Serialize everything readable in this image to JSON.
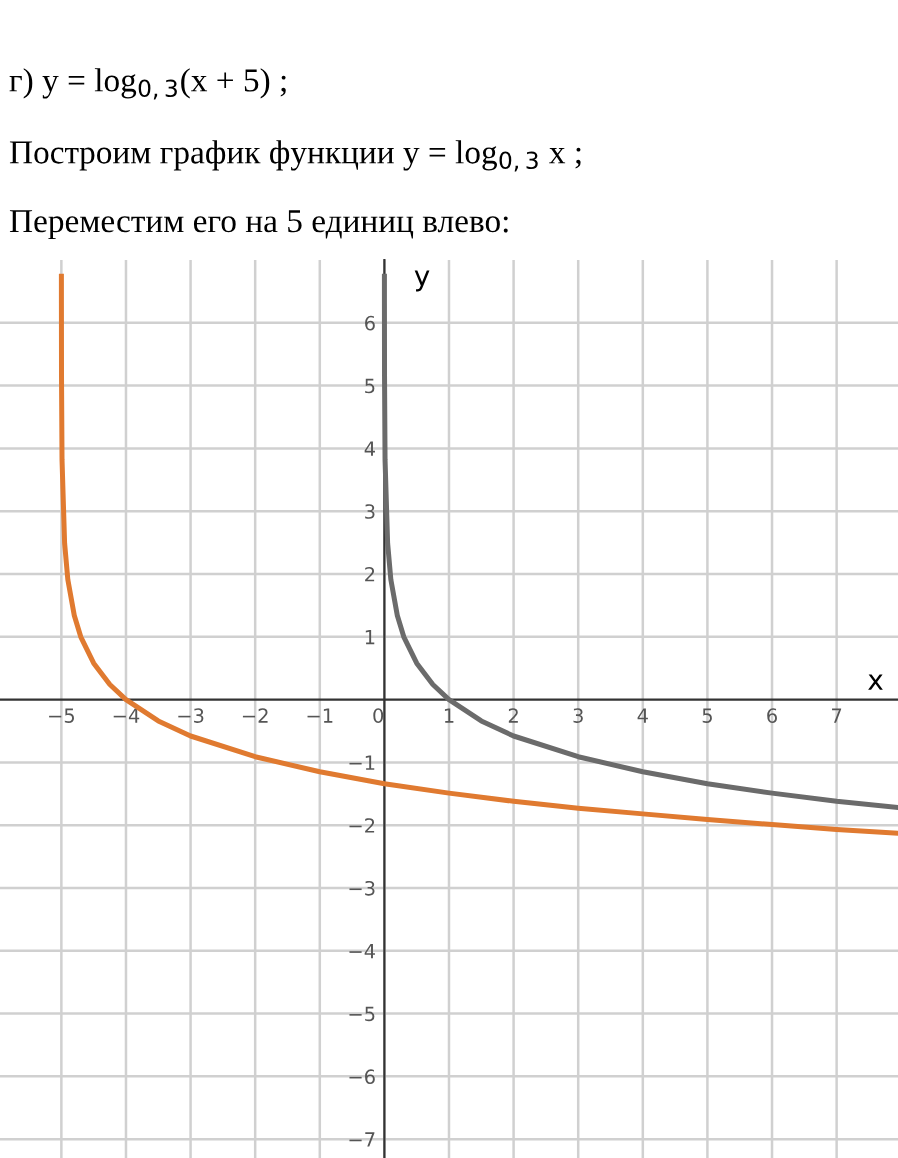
{
  "chart_data": {
    "type": "line",
    "title": "г) y = log$_{0,3}$(x + 5) ;",
    "subtitle": "Построим график функции y = log$_{0,3}$ x ;",
    "annotations": [
      "Переместим его на 5 единиц влево:"
    ],
    "xlabel": "x",
    "ylabel": "y",
    "series": [
      {
        "color": "#6b6b6b",
        "x": [
          0.0003,
          0.0005,
          0.002,
          0.01,
          0.05,
          0.1,
          0.2,
          0.3,
          0.5,
          0.75,
          1,
          1.5,
          2,
          3,
          4,
          5,
          6,
          7,
          7.95
        ],
        "values": [
          6.74,
          6.31,
          5.16,
          3.82,
          2.49,
          1.91,
          1.34,
          1.0,
          0.58,
          0.24,
          0,
          -0.34,
          -0.58,
          -0.91,
          -1.15,
          -1.34,
          -1.49,
          -1.62,
          -1.72
        ]
      },
      {
        "color": "#e07a30",
        "x": [
          -4.9997,
          -4.9995,
          -4.998,
          -4.99,
          -4.95,
          -4.9,
          -4.8,
          -4.7,
          -4.5,
          -4.25,
          -4,
          -3.5,
          -3,
          -2,
          -1,
          0,
          1,
          2,
          3,
          4,
          5,
          6,
          7,
          7.95
        ],
        "values": [
          6.74,
          6.31,
          5.16,
          3.82,
          2.49,
          1.91,
          1.34,
          1.0,
          0.58,
          0.24,
          0,
          -0.34,
          -0.58,
          -0.91,
          -1.15,
          -1.34,
          -1.49,
          -1.62,
          -1.73,
          -1.82,
          -1.91,
          -1.99,
          -2.07,
          -2.13
        ]
      }
    ],
    "xlim": [
      -5.95,
      7.95
    ],
    "ylim": [
      -7.3,
      7.0
    ],
    "xticks": [
      -5,
      -4,
      -3,
      -2,
      -1,
      0,
      1,
      2,
      3,
      4,
      5,
      6,
      7
    ],
    "yticks": [
      -7,
      -6,
      -5,
      -4,
      -3,
      -2,
      -1,
      1,
      2,
      3,
      4,
      5,
      6
    ],
    "grid": true,
    "marker": "none",
    "line_style": "solid"
  }
}
